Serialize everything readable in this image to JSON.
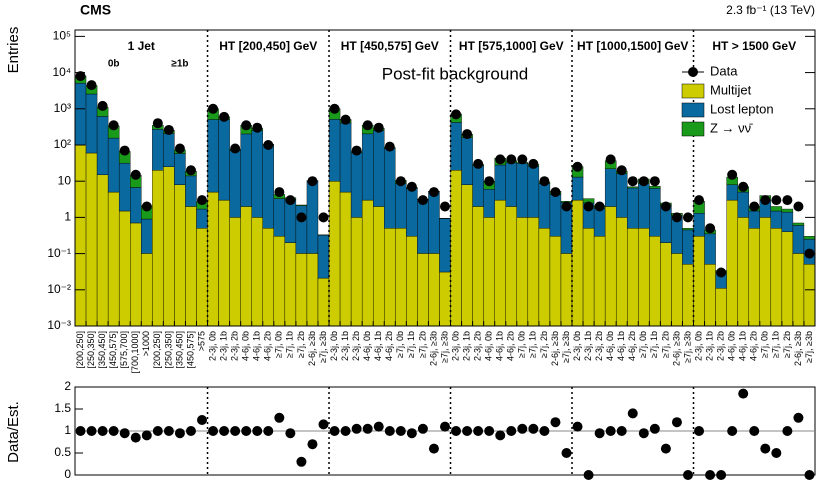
{
  "chart_data": {
    "type": "stacked-histogram",
    "experiment": "CMS",
    "lumi": "2.3 fb⁻¹ (13 TeV)",
    "annotation": "Post-fit background",
    "ylabel": "Entries",
    "log_y": true,
    "ylim": [
      0.001,
      150000
    ],
    "yticks": [
      {
        "value": 0.001,
        "label": "10⁻³"
      },
      {
        "value": 0.01,
        "label": "10⁻²"
      },
      {
        "value": 0.1,
        "label": "10⁻¹"
      },
      1,
      10,
      {
        "value": 100,
        "label": "10²"
      },
      {
        "value": 1000,
        "label": "10³"
      },
      {
        "value": 10000,
        "label": "10⁴"
      },
      {
        "value": 100000,
        "label": "10⁵"
      }
    ],
    "region_labels": [
      "1 Jet",
      "HT [200,450] GeV",
      "HT [450,575] GeV",
      "HT [575,1000] GeV",
      "HT [1000,1500] GeV",
      "HT > 1500 GeV"
    ],
    "sub_labels": [
      "0b",
      "≥1b"
    ],
    "categories": [
      "[200,250]",
      "[250,350]",
      "[350,450]",
      "[450,575]",
      "[575,700]",
      "[700,1000]",
      ">1000",
      "[200,250]",
      "[250,350]",
      "[350,450]",
      "[450,575]",
      ">575",
      "2-3j, 0b",
      "2-3j, 1b",
      "2-3j, 2b",
      "4-6j, 0b",
      "4-6j, 1b",
      "4-6j, 2b",
      "≥7j, 0b",
      "≥7j, 1b",
      "≥7j, 2b",
      "2-6j, ≥3b",
      "≥7j, ≥3b",
      "2-3j, 0b",
      "2-3j, 1b",
      "2-3j, 2b",
      "4-6j, 0b",
      "4-6j, 1b",
      "4-6j, 2b",
      "≥7j, 0b",
      "≥7j, 1b",
      "≥7j, 2b",
      "2-6j, ≥3b",
      "≥7j, ≥3b",
      "2-3j, 0b",
      "2-3j, 1b",
      "2-3j, 2b",
      "4-6j, 0b",
      "4-6j, 1b",
      "4-6j, 2b",
      "≥7j, 0b",
      "≥7j, 1b",
      "≥7j, 2b",
      "2-6j, ≥3b",
      "≥7j, ≥3b",
      "2-3j, 0b",
      "2-3j, 1b",
      "2-3j, 2b",
      "4-6j, 0b",
      "4-6j, 1b",
      "4-6j, 2b",
      "≥7j, 0b",
      "≥7j, 1b",
      "≥7j, 2b",
      "2-6j, ≥3b",
      "≥7j, ≥3b",
      "2-3j, 0b",
      "2-3j, 1b",
      "2-3j, 2b",
      "4-6j, 0b",
      "4-6j, 1b",
      "4-6j, 2b",
      "≥7j, 0b",
      "≥7j, 1b",
      "≥7j, 2b",
      "2-6j, ≥3b",
      "≥7j, ≥3b"
    ],
    "series": [
      {
        "name": "Multijet",
        "color": "#cccc00",
        "values": [
          100,
          60,
          15,
          5,
          1.5,
          0.7,
          0.1,
          20,
          25,
          8,
          2,
          0.5,
          5,
          3,
          1,
          2,
          1,
          0.5,
          0.3,
          0.2,
          0.1,
          0.1,
          0.02,
          10,
          5,
          1,
          3,
          2,
          0.5,
          0.5,
          0.3,
          0.1,
          0.1,
          0.03,
          20,
          8,
          2,
          1,
          3,
          2,
          1,
          1,
          0.5,
          0.3,
          0.1,
          3,
          0.5,
          0.3,
          2,
          1,
          0.5,
          0.5,
          0.3,
          0.2,
          0.1,
          0.05,
          0.3,
          0.05,
          0.01,
          3,
          1,
          0.5,
          1,
          0.5,
          0.4,
          0.1,
          0.05
        ]
      },
      {
        "name": "Lost lepton",
        "color": "#0a6aa0",
        "values": [
          5000,
          2500,
          600,
          150,
          30,
          6,
          0.8,
          250,
          180,
          50,
          12,
          1.2,
          500,
          500,
          70,
          200,
          250,
          100,
          3,
          3,
          2,
          10,
          0.3,
          500,
          400,
          60,
          200,
          250,
          80,
          8,
          6,
          3,
          5,
          0.9,
          400,
          150,
          25,
          5,
          25,
          30,
          30,
          25,
          8,
          4,
          2.5,
          10,
          2,
          1.5,
          20,
          15,
          6,
          8,
          6,
          2,
          1,
          0.4,
          1,
          0.3,
          0.02,
          5,
          4,
          1,
          2,
          1,
          1,
          0.5,
          0.2
        ]
      },
      {
        "name": "Z → νν̄",
        "color": "#1a9a1a",
        "values": [
          3000,
          1800,
          500,
          180,
          35,
          8,
          1.2,
          80,
          50,
          15,
          5,
          1,
          500,
          100,
          5,
          150,
          40,
          5,
          1,
          0.3,
          0.1,
          0.3,
          0.01,
          500,
          100,
          5,
          150,
          40,
          5,
          2,
          0.5,
          0.1,
          0.2,
          0.02,
          300,
          40,
          2,
          4,
          15,
          5,
          2,
          3,
          1,
          1,
          0.2,
          12,
          0.8,
          0.3,
          15,
          3,
          0.5,
          3,
          1,
          0.3,
          0.2,
          0.05,
          1.5,
          0.1,
          0.003,
          5,
          2,
          0.5,
          1,
          0.5,
          0.3,
          0.1,
          0.05
        ]
      }
    ],
    "data": {
      "name": "Data",
      "color": "#000000",
      "values": [
        8000,
        4500,
        1200,
        350,
        70,
        15,
        2,
        400,
        260,
        80,
        20,
        3,
        1000,
        600,
        80,
        350,
        300,
        100,
        5,
        3,
        1,
        10,
        1,
        1000,
        500,
        70,
        350,
        300,
        90,
        10,
        7,
        3,
        5,
        2,
        700,
        200,
        30,
        10,
        40,
        40,
        40,
        30,
        10,
        5,
        2,
        25,
        2,
        2,
        40,
        20,
        10,
        10,
        10,
        2,
        1,
        1,
        3,
        0.5,
        0.03,
        15,
        7,
        2,
        3,
        3,
        3,
        2,
        0.1
      ]
    },
    "ratio": {
      "ylabel": "Data/Est.",
      "ylim": [
        0,
        2
      ],
      "yticks": [
        0,
        0.5,
        1,
        1.5,
        2
      ],
      "values": [
        1,
        1,
        1,
        1,
        0.95,
        0.85,
        0.9,
        1,
        1,
        0.95,
        1,
        1.25,
        1,
        1,
        1,
        1,
        1,
        1,
        1.3,
        0.95,
        0.3,
        0.7,
        1.15,
        1,
        1,
        1.05,
        1.05,
        1.1,
        1,
        1,
        0.95,
        1.05,
        0.6,
        1.1,
        1,
        1,
        1,
        1,
        0.9,
        1,
        1.05,
        1.05,
        1,
        1.2,
        0.5,
        1.1,
        0,
        0.95,
        1,
        1,
        1.4,
        0.95,
        1.05,
        0.6,
        1.2,
        0,
        1,
        0,
        0,
        1,
        1.85,
        1,
        0.6,
        0.5,
        1,
        1.3,
        0
      ]
    }
  }
}
